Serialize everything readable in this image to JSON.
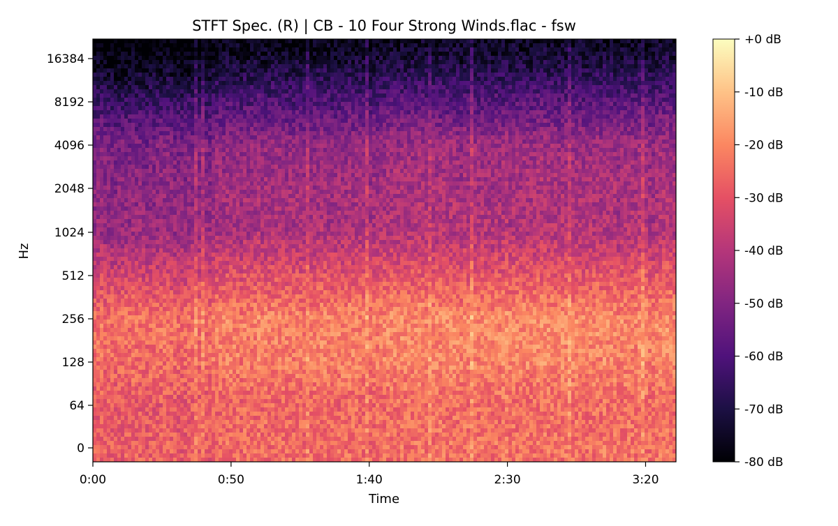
{
  "chart_data": {
    "type": "heatmap",
    "title": "STFT Spec. (R) | CB - 10 Four Strong Winds.flac - fsw",
    "xlabel": "Time",
    "ylabel": "Hz",
    "y_scale": "symlog (base 2)",
    "x_range_seconds": [
      0,
      211
    ],
    "x_ticks": [
      {
        "value": 0,
        "label": "0:00"
      },
      {
        "value": 50,
        "label": "0:50"
      },
      {
        "value": 100,
        "label": "1:40"
      },
      {
        "value": 150,
        "label": "2:30"
      },
      {
        "value": 200,
        "label": "3:20"
      }
    ],
    "y_ticks": [
      {
        "value": 0,
        "label": "0"
      },
      {
        "value": 64,
        "label": "64"
      },
      {
        "value": 128,
        "label": "128"
      },
      {
        "value": 256,
        "label": "256"
      },
      {
        "value": 512,
        "label": "512"
      },
      {
        "value": 1024,
        "label": "1024"
      },
      {
        "value": 2048,
        "label": "2048"
      },
      {
        "value": 4096,
        "label": "4096"
      },
      {
        "value": 8192,
        "label": "8192"
      },
      {
        "value": 16384,
        "label": "16384"
      }
    ],
    "colorbar": {
      "colormap": "magma",
      "range_db": [
        -80,
        0
      ],
      "ticks": [
        {
          "value": 0,
          "label": "+0 dB"
        },
        {
          "value": -10,
          "label": "-10 dB"
        },
        {
          "value": -20,
          "label": "-20 dB"
        },
        {
          "value": -30,
          "label": "-30 dB"
        },
        {
          "value": -40,
          "label": "-40 dB"
        },
        {
          "value": -50,
          "label": "-50 dB"
        },
        {
          "value": -60,
          "label": "-60 dB"
        },
        {
          "value": -70,
          "label": "-70 dB"
        },
        {
          "value": -80,
          "label": "-80 dB"
        }
      ]
    },
    "band_energy_profile_db": [
      {
        "label": "0",
        "level": -25
      },
      {
        "label": "64",
        "level": -26
      },
      {
        "label": "128",
        "level": -22
      },
      {
        "label": "256",
        "level": -21
      },
      {
        "label": "512",
        "level": -31
      },
      {
        "label": "1024",
        "level": -42
      },
      {
        "label": "2048",
        "level": -44
      },
      {
        "label": "4096",
        "level": -47
      },
      {
        "label": "8192",
        "level": -60
      },
      {
        "label": "16384",
        "level": -74
      }
    ],
    "colormap_stops": [
      "#000004",
      "#1c1044",
      "#4f127b",
      "#812581",
      "#b5367a",
      "#e55064",
      "#fb8761",
      "#fec287",
      "#fcfdbf"
    ]
  }
}
